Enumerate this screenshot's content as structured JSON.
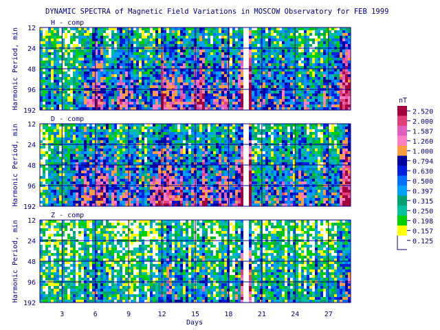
{
  "chart_data": {
    "type": "heatmap",
    "title": "DYNAMIC SPECTRA of Magnetic Field Variations in MOSCOW Observatory for FEB 1999",
    "xlabel": "Days",
    "ylabel": "Harmonic Period, min",
    "x_ticks": [
      "3",
      "6",
      "9",
      "12",
      "15",
      "18",
      "21",
      "24",
      "27"
    ],
    "x_tick_values": [
      3,
      6,
      9,
      12,
      15,
      18,
      21,
      24,
      27
    ],
    "xlim": [
      1,
      29
    ],
    "y_ticks": [
      "12",
      "24",
      "48",
      "96",
      "192"
    ],
    "y_tick_values": [
      12,
      24,
      48,
      96,
      192
    ],
    "ylim": [
      12,
      192
    ],
    "y_scale": "log",
    "grid": true,
    "colorbar": {
      "unit": "nT",
      "levels": [
        "2.520",
        "2.000",
        "1.587",
        "1.260",
        "1.000",
        "0.794",
        "0.630",
        "0.500",
        "0.397",
        "0.315",
        "0.250",
        "0.198",
        "0.157",
        "0.125"
      ],
      "colors": [
        "#a0003c",
        "#e0407a",
        "#e060c0",
        "#ff80c0",
        "#ff9e40",
        "#0000a0",
        "#0020e0",
        "#0070ff",
        "#00a0ff",
        "#00a070",
        "#00c0a0",
        "#00d000",
        "#ffff00",
        "#ffffff"
      ]
    },
    "panels": [
      {
        "label": "H - comp",
        "day_intensity": [
          0.3,
          0.3,
          0.35,
          0.4,
          0.6,
          0.7,
          0.55,
          0.6,
          0.55,
          0.4,
          0.6,
          0.75,
          0.7,
          0.55,
          0.7,
          0.6,
          0.65,
          0.55,
          1.0,
          0.5,
          0.45,
          0.5,
          0.45,
          0.45,
          0.5,
          0.45,
          0.5,
          0.9
        ]
      },
      {
        "label": "D - comp",
        "day_intensity": [
          0.3,
          0.3,
          0.35,
          0.5,
          0.65,
          0.75,
          0.6,
          0.6,
          0.5,
          0.4,
          0.65,
          0.8,
          0.7,
          0.55,
          0.7,
          0.6,
          0.7,
          0.55,
          1.0,
          0.55,
          0.45,
          0.5,
          0.45,
          0.45,
          0.5,
          0.45,
          0.5,
          0.85
        ]
      },
      {
        "label": "Z - comp",
        "day_intensity": [
          0.15,
          0.15,
          0.15,
          0.2,
          0.25,
          0.3,
          0.25,
          0.25,
          0.2,
          0.2,
          0.35,
          0.45,
          0.4,
          0.3,
          0.4,
          0.35,
          0.4,
          0.35,
          0.7,
          0.3,
          0.25,
          0.3,
          0.25,
          0.25,
          0.3,
          0.3,
          0.3,
          0.55
        ]
      }
    ]
  }
}
